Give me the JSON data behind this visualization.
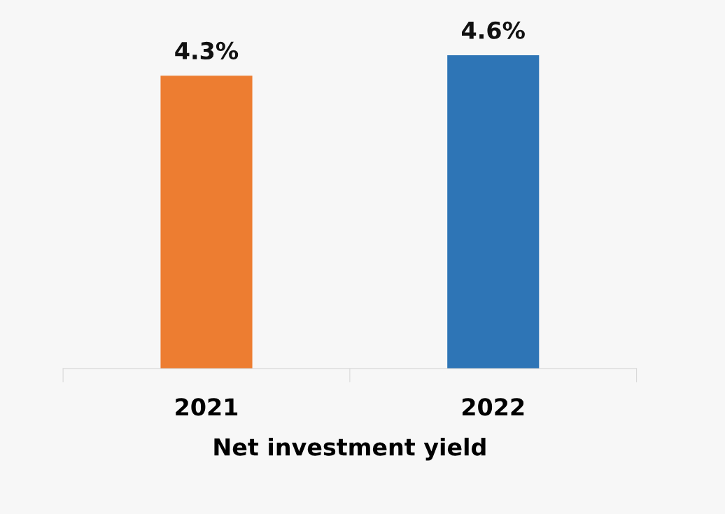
{
  "chart_data": {
    "type": "bar",
    "xlabel": "Net investment yield",
    "categories": [
      "2021",
      "2022"
    ],
    "values": [
      4.3,
      4.6
    ],
    "colors": [
      "#ed7d31",
      "#2e75b6"
    ],
    "value_labels": [
      "4.3%",
      "4.6%"
    ],
    "grid": false,
    "legend": false
  }
}
